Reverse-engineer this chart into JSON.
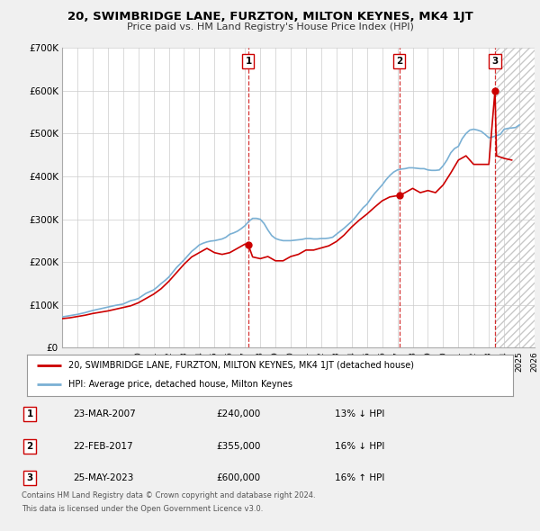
{
  "title": "20, SWIMBRIDGE LANE, FURZTON, MILTON KEYNES, MK4 1JT",
  "subtitle": "Price paid vs. HM Land Registry's House Price Index (HPI)",
  "ylim": [
    0,
    700000
  ],
  "xlim": [
    1995,
    2026
  ],
  "yticks": [
    0,
    100000,
    200000,
    300000,
    400000,
    500000,
    600000,
    700000
  ],
  "ytick_labels": [
    "£0",
    "£100K",
    "£200K",
    "£300K",
    "£400K",
    "£500K",
    "£600K",
    "£700K"
  ],
  "transactions": [
    {
      "num": 1,
      "date": "23-MAR-2007",
      "price": 240000,
      "year": 2007.22,
      "pct": "13%",
      "dir": "↓"
    },
    {
      "num": 2,
      "date": "22-FEB-2017",
      "price": 355000,
      "year": 2017.13,
      "pct": "16%",
      "dir": "↓"
    },
    {
      "num": 3,
      "date": "25-MAY-2023",
      "price": 600000,
      "year": 2023.4,
      "pct": "16%",
      "dir": "↑"
    }
  ],
  "legend_house": "20, SWIMBRIDGE LANE, FURZTON, MILTON KEYNES, MK4 1JT (detached house)",
  "legend_hpi": "HPI: Average price, detached house, Milton Keynes",
  "footer1": "Contains HM Land Registry data © Crown copyright and database right 2024.",
  "footer2": "This data is licensed under the Open Government Licence v3.0.",
  "house_color": "#cc0000",
  "hpi_color": "#7ab0d4",
  "bg_color": "#f0f0f0",
  "plot_bg": "#ffffff",
  "grid_color": "#cccccc",
  "hpi_data_years": [
    1995.0,
    1995.25,
    1995.5,
    1995.75,
    1996.0,
    1996.25,
    1996.5,
    1996.75,
    1997.0,
    1997.25,
    1997.5,
    1997.75,
    1998.0,
    1998.25,
    1998.5,
    1998.75,
    1999.0,
    1999.25,
    1999.5,
    1999.75,
    2000.0,
    2000.25,
    2000.5,
    2000.75,
    2001.0,
    2001.25,
    2001.5,
    2001.75,
    2002.0,
    2002.25,
    2002.5,
    2002.75,
    2003.0,
    2003.25,
    2003.5,
    2003.75,
    2004.0,
    2004.25,
    2004.5,
    2004.75,
    2005.0,
    2005.25,
    2005.5,
    2005.75,
    2006.0,
    2006.25,
    2006.5,
    2006.75,
    2007.0,
    2007.25,
    2007.5,
    2007.75,
    2008.0,
    2008.25,
    2008.5,
    2008.75,
    2009.0,
    2009.25,
    2009.5,
    2009.75,
    2010.0,
    2010.25,
    2010.5,
    2010.75,
    2011.0,
    2011.25,
    2011.5,
    2011.75,
    2012.0,
    2012.25,
    2012.5,
    2012.75,
    2013.0,
    2013.25,
    2013.5,
    2013.75,
    2014.0,
    2014.25,
    2014.5,
    2014.75,
    2015.0,
    2015.25,
    2015.5,
    2015.75,
    2016.0,
    2016.25,
    2016.5,
    2016.75,
    2017.0,
    2017.25,
    2017.5,
    2017.75,
    2018.0,
    2018.25,
    2018.5,
    2018.75,
    2019.0,
    2019.25,
    2019.5,
    2019.75,
    2020.0,
    2020.25,
    2020.5,
    2020.75,
    2021.0,
    2021.25,
    2021.5,
    2021.75,
    2022.0,
    2022.25,
    2022.5,
    2022.75,
    2023.0,
    2023.25,
    2023.5,
    2023.75,
    2024.0,
    2024.25,
    2024.5,
    2024.75,
    2025.0
  ],
  "hpi_data_values": [
    72000,
    73500,
    75000,
    76500,
    78000,
    80000,
    82000,
    84500,
    87000,
    89000,
    91000,
    93000,
    95000,
    97000,
    99000,
    100500,
    102000,
    106000,
    110000,
    112000,
    115000,
    121000,
    127000,
    131000,
    135000,
    142000,
    150000,
    157000,
    165000,
    176000,
    187000,
    196000,
    205000,
    215000,
    225000,
    232000,
    240000,
    244000,
    247000,
    249000,
    250000,
    252000,
    254000,
    258000,
    265000,
    268000,
    272000,
    278000,
    285000,
    295000,
    302000,
    302000,
    300000,
    290000,
    275000,
    262000,
    255000,
    252000,
    250000,
    250000,
    250000,
    251000,
    252000,
    253000,
    255000,
    255000,
    254000,
    254000,
    255000,
    255000,
    256000,
    258000,
    265000,
    272000,
    279000,
    287000,
    295000,
    305000,
    316000,
    327000,
    335000,
    348000,
    360000,
    370000,
    380000,
    392000,
    402000,
    410000,
    415000,
    417000,
    418000,
    420000,
    420000,
    419000,
    418000,
    418000,
    415000,
    414000,
    414000,
    415000,
    425000,
    438000,
    455000,
    465000,
    470000,
    488000,
    500000,
    508000,
    510000,
    508000,
    505000,
    498000,
    490000,
    492000,
    495000,
    498000,
    510000,
    512000,
    513000,
    514000,
    520000
  ],
  "house_data_years": [
    1995.0,
    1995.5,
    1996.0,
    1996.5,
    1997.0,
    1997.5,
    1998.0,
    1998.5,
    1999.0,
    1999.5,
    2000.0,
    2000.5,
    2001.0,
    2001.5,
    2002.0,
    2002.5,
    2003.0,
    2003.5,
    2004.0,
    2004.5,
    2005.0,
    2005.5,
    2006.0,
    2006.5,
    2007.0,
    2007.22,
    2007.5,
    2008.0,
    2008.5,
    2009.0,
    2009.5,
    2010.0,
    2010.5,
    2011.0,
    2011.5,
    2012.0,
    2012.5,
    2013.0,
    2013.5,
    2014.0,
    2014.5,
    2015.0,
    2015.5,
    2016.0,
    2016.5,
    2017.0,
    2017.13,
    2017.5,
    2018.0,
    2018.5,
    2019.0,
    2019.5,
    2020.0,
    2020.5,
    2021.0,
    2021.5,
    2022.0,
    2022.5,
    2023.0,
    2023.4,
    2023.5,
    2024.0,
    2024.5
  ],
  "house_data_values": [
    68000,
    70000,
    73000,
    76000,
    80000,
    83000,
    86000,
    90000,
    94000,
    98000,
    105000,
    115000,
    125000,
    138000,
    155000,
    175000,
    195000,
    212000,
    222000,
    232000,
    222000,
    218000,
    222000,
    232000,
    242000,
    240000,
    212000,
    208000,
    213000,
    203000,
    203000,
    213000,
    218000,
    228000,
    228000,
    233000,
    238000,
    248000,
    263000,
    282000,
    298000,
    312000,
    328000,
    343000,
    352000,
    355000,
    355000,
    362000,
    372000,
    362000,
    367000,
    362000,
    380000,
    408000,
    438000,
    448000,
    428000,
    428000,
    428000,
    600000,
    448000,
    442000,
    438000
  ]
}
